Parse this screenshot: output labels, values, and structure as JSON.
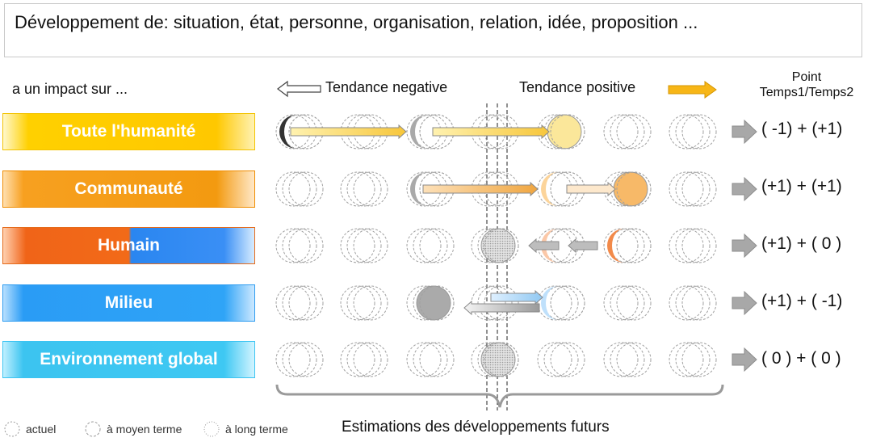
{
  "header": {
    "title": "Développement de: situation, état, personne, organisation, relation, idée, proposition ..."
  },
  "impact_label": "a un impact sur ...",
  "trends": {
    "negative": "Tendance negative",
    "positive": "Tendance positive"
  },
  "point_header": {
    "line1": "Point",
    "line2": "Temps1/Temps2"
  },
  "categories": [
    {
      "label": "Toute l'humanité",
      "score": "( -1) + (+1)"
    },
    {
      "label": "Communauté",
      "score": "(+1) + (+1)"
    },
    {
      "label": "Humain",
      "score": "(+1) + ( 0 )"
    },
    {
      "label": "Milieu",
      "score": "(+1) + ( -1)"
    },
    {
      "label": "Environnement global",
      "score": "( 0 ) + ( 0 )"
    }
  ],
  "legend": [
    "actuel",
    "à moyen terme",
    "à long terme"
  ],
  "footer": "Estimations des développements futurs",
  "colors": {
    "yellow": "#ffd000",
    "orange": "#f39a10",
    "dark_orange": "#f26a18",
    "blue": "#2fa4f7",
    "cyan": "#3ec8f3",
    "gray": "#a8a8a8"
  }
}
